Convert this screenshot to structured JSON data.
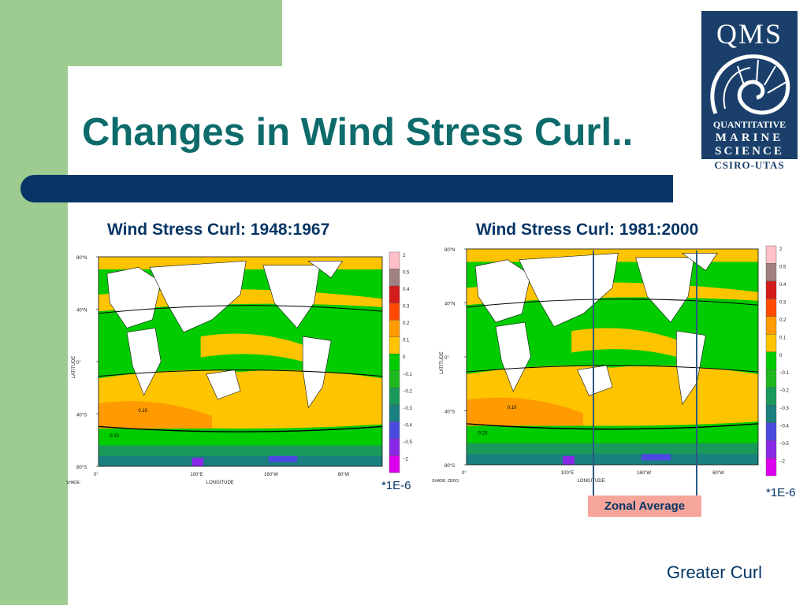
{
  "slide": {
    "title": "Changes in Wind Stress Curl..",
    "zonal_average_label": "Zonal Average",
    "footer_text": "Greater Curl"
  },
  "logo": {
    "top": "QMS",
    "line1": "QUANTITATIVE",
    "line2": "MARINE",
    "line3": "SCIENCE",
    "bottom": "CSIRO-UTAS"
  },
  "colors": {
    "title": "#0d6b6b",
    "accent_bar": "#063565",
    "side_green": "#9dcb90",
    "label_navy": "#063565",
    "zonal_box": "#f6a59a"
  },
  "maps": [
    {
      "title": "Wind Stress Curl: 1948:1967",
      "unit_note": "*1E-6",
      "lat_ticks": [
        "80°N",
        "40°N",
        "0°",
        "40°S",
        "80°S"
      ],
      "lon_ticks": [
        "0°",
        "100°E",
        "160°W",
        "60°W"
      ],
      "ylabel": "LATITUDE",
      "xlabel": "LONGITUDE",
      "shade_note": "SHADE:",
      "contour_labels": [
        "0.10",
        "0.10"
      ]
    },
    {
      "title": "Wind Stress Curl: 1981:2000",
      "unit_note": "*1E-6",
      "lat_ticks": [
        "80°N",
        "40°N",
        "0°",
        "40°S",
        "80°S"
      ],
      "lon_ticks": [
        "0°",
        "100°E",
        "160°W",
        "60°W"
      ],
      "ylabel": "LATITUDE",
      "xlabel": "LONGITUDE",
      "shade_note": "SHADE: ZERO",
      "contour_labels": [
        "0.10",
        "0.20"
      ]
    }
  ],
  "colorbar": {
    "labels": [
      "2",
      "0.5",
      "0.4",
      "0.3",
      "0.2",
      "0.1",
      "0",
      "−0.1",
      "−0.2",
      "−0.3",
      "−0.4",
      "−0.5",
      "−2"
    ],
    "colors": [
      "#ffc0c8",
      "#a08080",
      "#d41b1b",
      "#ff4a00",
      "#ff9b00",
      "#ffc400",
      "#00cc00",
      "#1fb81f",
      "#1a9a5a",
      "#1a7f7f",
      "#4a4ae0",
      "#8a28e8",
      "#dd00ee"
    ]
  }
}
